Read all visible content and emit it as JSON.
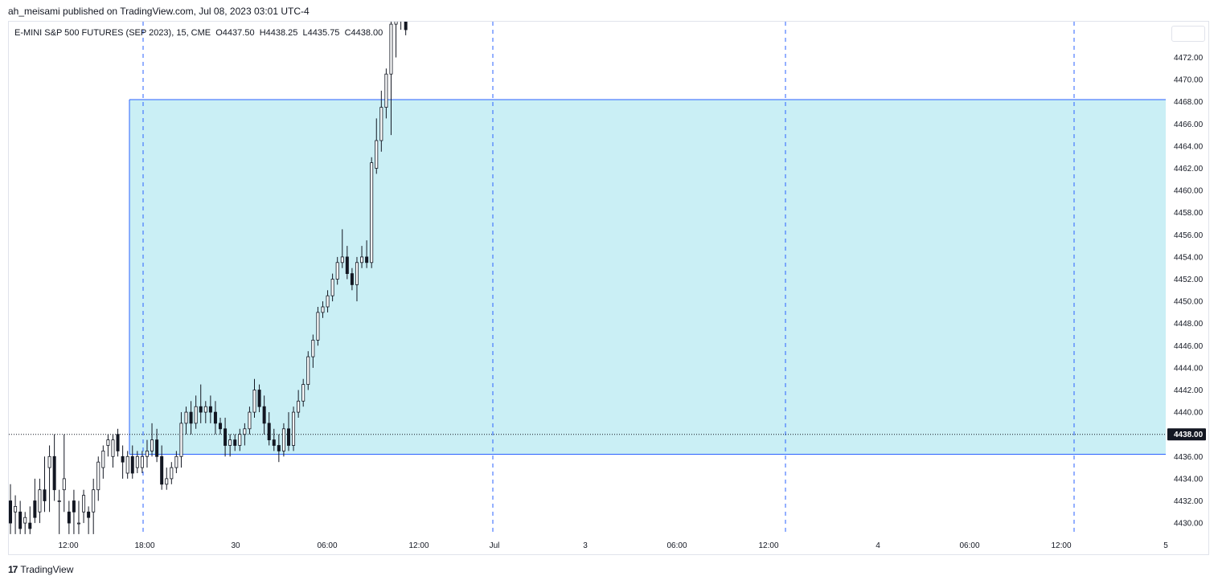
{
  "header": {
    "published_text": "ah_meisami published on TradingView.com, Jul 08, 2023 03:01 UTC-4"
  },
  "legend": {
    "symbol": "E-MINI S&P 500 FUTURES (SEP 2023), 15, CME",
    "open": "O4437.50",
    "high": "H4438.25",
    "low": "L4435.75",
    "close": "C4438.00"
  },
  "footer": {
    "brand": "TradingView"
  },
  "colors": {
    "zone_fill": "#caeff5",
    "zone_border": "#2962ff",
    "session_line": "#2962ff",
    "candle": "#131722",
    "price_label_bg": "#131722",
    "price_label_text": "#ffffff"
  },
  "chart_data": {
    "type": "candlestick",
    "interval": "15",
    "y_axis": {
      "ticks": [
        "4472.00",
        "4470.00",
        "4468.00",
        "4466.00",
        "4464.00",
        "4462.00",
        "4460.00",
        "4458.00",
        "4456.00",
        "4454.00",
        "4452.00",
        "4450.00",
        "4448.00",
        "4446.00",
        "4444.00",
        "4442.00",
        "4440.00",
        "4436.00",
        "4434.00",
        "4432.00",
        "4430.00"
      ],
      "tick_values": [
        4472,
        4470,
        4468,
        4466,
        4464,
        4462,
        4460,
        4458,
        4456,
        4454,
        4452,
        4450,
        4448,
        4446,
        4444,
        4442,
        4440,
        4436,
        4434,
        4432,
        4430
      ],
      "range": [
        4428.9,
        4474.7
      ]
    },
    "x_axis": {
      "ticks": [
        "12:00",
        "18:00",
        "30",
        "06:00",
        "12:00",
        "Jul",
        "3",
        "06:00",
        "12:00",
        "4",
        "06:00",
        "12:00",
        "5"
      ]
    },
    "session_breaks": [
      "18:00",
      "Jul",
      "12:00 (Jul 3)",
      "12:00 (Jul 4)"
    ],
    "last_price": 4438.0,
    "last_price_label": "4438.00",
    "zone": {
      "top": 4468.2,
      "bottom": 4436.2
    },
    "candles": [
      [
        4432,
        4433.5,
        4429,
        4430
      ],
      [
        4431,
        4432.5,
        4429,
        4431.5
      ],
      [
        4431,
        4432,
        4429,
        4429.5
      ],
      [
        4430,
        4431,
        4429,
        4430.5
      ],
      [
        4430,
        4431.5,
        4429,
        4429.5
      ],
      [
        4432,
        4434,
        4430,
        4430.5
      ],
      [
        4431,
        4434,
        4430,
        4433
      ],
      [
        4433,
        4436,
        4431,
        4432
      ],
      [
        4435,
        4437,
        4431,
        4436
      ],
      [
        4436,
        4438,
        4432,
        4433
      ],
      [
        4432,
        4433,
        4429,
        4432
      ],
      [
        4433,
        4438,
        4431,
        4434
      ],
      [
        4431,
        4432,
        4429,
        4430
      ],
      [
        4432,
        4433,
        4429,
        4431
      ],
      [
        4430,
        4432,
        4429,
        4430
      ],
      [
        4431,
        4433,
        4430,
        4432.5
      ],
      [
        4431,
        4431.5,
        4429,
        4430.5
      ],
      [
        4431,
        4434,
        4429,
        4433
      ],
      [
        4433,
        4436,
        4432,
        4435.5
      ],
      [
        4435,
        4437,
        4434,
        4436.5
      ],
      [
        4437,
        4438,
        4436,
        4437.5
      ],
      [
        4436,
        4438,
        4435,
        4437.5
      ],
      [
        4438,
        4438.5,
        4436,
        4436.5
      ],
      [
        4436,
        4437,
        4434,
        4435.5
      ],
      [
        4434.5,
        4436.5,
        4434,
        4436
      ],
      [
        4436,
        4437,
        4434,
        4434.5
      ],
      [
        4435,
        4436.5,
        4434.5,
        4436
      ],
      [
        4435,
        4436.5,
        4434.5,
        4436
      ],
      [
        4436,
        4437.5,
        4435,
        4436.5
      ],
      [
        4436.5,
        4439,
        4436,
        4437.5
      ],
      [
        4437.5,
        4438.5,
        4435.5,
        4436
      ],
      [
        4436,
        4437,
        4433,
        4433.5
      ],
      [
        4433.5,
        4435,
        4433,
        4434
      ],
      [
        4434,
        4435.5,
        4433.5,
        4435
      ],
      [
        4435,
        4436.5,
        4434.5,
        4436
      ],
      [
        4436,
        4440,
        4435,
        4439
      ],
      [
        4439,
        4440.5,
        4438,
        4440
      ],
      [
        4440,
        4441,
        4438,
        4439
      ],
      [
        4439,
        4441.5,
        4438.5,
        4440.5
      ],
      [
        4440.5,
        4442.5,
        4439,
        4440
      ],
      [
        4440,
        4441,
        4439,
        4440.5
      ],
      [
        4440.5,
        4441.5,
        4439,
        4440
      ],
      [
        4440,
        4441,
        4438,
        4439
      ],
      [
        4439,
        4439.5,
        4438,
        4438.5
      ],
      [
        4438.5,
        4439.5,
        4436,
        4437
      ],
      [
        4437,
        4438,
        4436,
        4437.5
      ],
      [
        4437.5,
        4438,
        4436.5,
        4437
      ],
      [
        4437,
        4438.5,
        4436.5,
        4438
      ],
      [
        4438,
        4439,
        4437,
        4438.5
      ],
      [
        4438.5,
        4440.5,
        4438,
        4440
      ],
      [
        4440,
        4443,
        4439.5,
        4442
      ],
      [
        4442,
        4442.5,
        4440,
        4440.5
      ],
      [
        4440.5,
        4441.5,
        4438,
        4439
      ],
      [
        4439,
        4440,
        4437,
        4437.5
      ],
      [
        4437.5,
        4438.5,
        4436.5,
        4437
      ],
      [
        4437,
        4438,
        4435.5,
        4436.5
      ],
      [
        4436.5,
        4439,
        4436,
        4438.5
      ],
      [
        4438.5,
        4440,
        4436.5,
        4437
      ],
      [
        4437,
        4440.5,
        4436.5,
        4440
      ],
      [
        4440,
        4442,
        4439.5,
        4441
      ],
      [
        4441,
        4443,
        4440.5,
        4442.5
      ],
      [
        4442.5,
        4445.5,
        4442,
        4445
      ],
      [
        4445,
        4447,
        4444,
        4446.5
      ],
      [
        4446.5,
        4449.5,
        4446,
        4449
      ],
      [
        4449,
        4450,
        4448.5,
        4449.5
      ],
      [
        4449.5,
        4451,
        4449,
        4450.5
      ],
      [
        4450.5,
        4452.5,
        4450,
        4452
      ],
      [
        4452,
        4454,
        4451.5,
        4453.5
      ],
      [
        4453.5,
        4456.5,
        4453,
        4454
      ],
      [
        4454,
        4455,
        4452,
        4452.5
      ],
      [
        4452.5,
        4453,
        4451,
        4451.5
      ],
      [
        4451.5,
        4454,
        4450,
        4453.5
      ],
      [
        4453.5,
        4455,
        4453,
        4454
      ],
      [
        4454,
        4455.5,
        4453,
        4453.5
      ],
      [
        4453.5,
        4463,
        4453,
        4462.5
      ],
      [
        4462,
        4466.5,
        4461.5,
        4464.5
      ],
      [
        4464.5,
        4469,
        4463.5,
        4467.5
      ],
      [
        4467.5,
        4471,
        4466.5,
        4470.5
      ],
      [
        4470.5,
        4476,
        4465,
        4475
      ],
      [
        4475,
        4477,
        4472,
        4476
      ],
      [
        4476,
        4477,
        4474.5,
        4475.5
      ],
      [
        4475.5,
        4476.5,
        4474,
        4474.5
      ]
    ]
  }
}
